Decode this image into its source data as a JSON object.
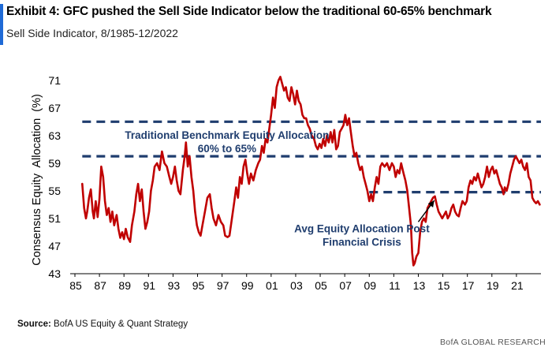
{
  "header": {
    "title": "Exhibit 4: GFC pushed the Sell Side Indicator below the traditional 60-65% benchmark",
    "subtitle": "Sell Side Indicator, 8/1985-12/2022",
    "accent_color": "#1f6ad6"
  },
  "footer": {
    "source_label": "Source:",
    "source_text": "BofA US Equity & Quant Strategy",
    "brand": "BofA GLOBAL RESEARCH"
  },
  "chart_data": {
    "type": "line",
    "title": "",
    "xlabel": "",
    "ylabel": "Consensus Equity  Allocation  (%)",
    "ylim": [
      43,
      72
    ],
    "xlim": [
      1985,
      2023
    ],
    "grid": false,
    "yticks": [
      43,
      47,
      51,
      55,
      59,
      63,
      67,
      71
    ],
    "xticks": [
      {
        "value": 1985,
        "label": "85"
      },
      {
        "value": 1987,
        "label": "87"
      },
      {
        "value": 1989,
        "label": "89"
      },
      {
        "value": 1991,
        "label": "91"
      },
      {
        "value": 1993,
        "label": "93"
      },
      {
        "value": 1995,
        "label": "95"
      },
      {
        "value": 1997,
        "label": "97"
      },
      {
        "value": 1999,
        "label": "99"
      },
      {
        "value": 2001,
        "label": "01"
      },
      {
        "value": 2003,
        "label": "03"
      },
      {
        "value": 2005,
        "label": "05"
      },
      {
        "value": 2007,
        "label": "07"
      },
      {
        "value": 2009,
        "label": "09"
      },
      {
        "value": 2011,
        "label": "11"
      },
      {
        "value": 2013,
        "label": "13"
      },
      {
        "value": 2015,
        "label": "15"
      },
      {
        "value": 2017,
        "label": "17"
      },
      {
        "value": 2019,
        "label": "19"
      },
      {
        "value": 2021,
        "label": "21"
      }
    ],
    "series": [
      {
        "line_color": "#c00000",
        "points": [
          [
            1985.6,
            56.0
          ],
          [
            1985.75,
            52.5
          ],
          [
            1985.9,
            51.0
          ],
          [
            1986.0,
            52.0
          ],
          [
            1986.15,
            54.0
          ],
          [
            1986.3,
            55.2
          ],
          [
            1986.45,
            52.0
          ],
          [
            1986.55,
            51.0
          ],
          [
            1986.7,
            53.5
          ],
          [
            1986.85,
            51.2
          ],
          [
            1987.0,
            53.8
          ],
          [
            1987.15,
            58.5
          ],
          [
            1987.3,
            57.0
          ],
          [
            1987.45,
            53.5
          ],
          [
            1987.6,
            51.5
          ],
          [
            1987.75,
            52.5
          ],
          [
            1987.9,
            50.5
          ],
          [
            1988.05,
            52.0
          ],
          [
            1988.2,
            50.0
          ],
          [
            1988.4,
            51.5
          ],
          [
            1988.55,
            49.5
          ],
          [
            1988.7,
            48.2
          ],
          [
            1988.85,
            49.0
          ],
          [
            1989.0,
            48.0
          ],
          [
            1989.15,
            49.5
          ],
          [
            1989.3,
            48.3
          ],
          [
            1989.5,
            47.6
          ],
          [
            1989.65,
            50.0
          ],
          [
            1989.85,
            52.0
          ],
          [
            1990.0,
            54.5
          ],
          [
            1990.15,
            56.0
          ],
          [
            1990.3,
            53.5
          ],
          [
            1990.45,
            55.2
          ],
          [
            1990.6,
            52.0
          ],
          [
            1990.75,
            49.5
          ],
          [
            1990.9,
            50.5
          ],
          [
            1991.05,
            52.0
          ],
          [
            1991.2,
            55.0
          ],
          [
            1991.35,
            56.5
          ],
          [
            1991.5,
            58.5
          ],
          [
            1991.7,
            59.0
          ],
          [
            1991.9,
            58.0
          ],
          [
            1992.1,
            60.7
          ],
          [
            1992.3,
            59.0
          ],
          [
            1992.5,
            58.5
          ],
          [
            1992.7,
            57.0
          ],
          [
            1992.85,
            56.0
          ],
          [
            1993.0,
            57.0
          ],
          [
            1993.15,
            58.5
          ],
          [
            1993.3,
            56.5
          ],
          [
            1993.45,
            55.0
          ],
          [
            1993.6,
            54.5
          ],
          [
            1993.8,
            58.0
          ],
          [
            1993.95,
            60.0
          ],
          [
            1994.05,
            62.0
          ],
          [
            1994.2,
            58.5
          ],
          [
            1994.35,
            60.0
          ],
          [
            1994.5,
            57.0
          ],
          [
            1994.65,
            55.0
          ],
          [
            1994.8,
            52.0
          ],
          [
            1994.95,
            50.0
          ],
          [
            1995.1,
            49.0
          ],
          [
            1995.25,
            48.5
          ],
          [
            1995.4,
            50.0
          ],
          [
            1995.6,
            52.0
          ],
          [
            1995.8,
            54.0
          ],
          [
            1996.0,
            54.5
          ],
          [
            1996.15,
            52.5
          ],
          [
            1996.3,
            51.0
          ],
          [
            1996.5,
            50.0
          ],
          [
            1996.7,
            51.5
          ],
          [
            1996.9,
            50.5
          ],
          [
            1997.1,
            50.0
          ],
          [
            1997.25,
            48.5
          ],
          [
            1997.45,
            48.3
          ],
          [
            1997.6,
            48.5
          ],
          [
            1997.8,
            51.0
          ],
          [
            1998.0,
            53.5
          ],
          [
            1998.15,
            55.5
          ],
          [
            1998.3,
            54.0
          ],
          [
            1998.45,
            57.0
          ],
          [
            1998.6,
            56.0
          ],
          [
            1998.75,
            58.5
          ],
          [
            1998.9,
            59.5
          ],
          [
            1999.05,
            57.5
          ],
          [
            1999.2,
            56.0
          ],
          [
            1999.35,
            57.5
          ],
          [
            1999.55,
            56.5
          ],
          [
            1999.75,
            58.0
          ],
          [
            1999.95,
            59.0
          ],
          [
            2000.1,
            59.5
          ],
          [
            2000.25,
            61.5
          ],
          [
            2000.4,
            60.5
          ],
          [
            2000.55,
            62.5
          ],
          [
            2000.7,
            62.0
          ],
          [
            2000.85,
            64.0
          ],
          [
            2001.0,
            66.0
          ],
          [
            2001.15,
            68.5
          ],
          [
            2001.3,
            67.0
          ],
          [
            2001.45,
            70.0
          ],
          [
            2001.6,
            71.0
          ],
          [
            2001.75,
            71.5
          ],
          [
            2001.9,
            70.5
          ],
          [
            2002.05,
            69.5
          ],
          [
            2002.2,
            70.0
          ],
          [
            2002.35,
            68.5
          ],
          [
            2002.5,
            68.0
          ],
          [
            2002.65,
            70.0
          ],
          [
            2002.8,
            69.0
          ],
          [
            2002.95,
            67.5
          ],
          [
            2003.1,
            69.5
          ],
          [
            2003.25,
            68.0
          ],
          [
            2003.4,
            67.5
          ],
          [
            2003.55,
            66.0
          ],
          [
            2003.7,
            65.5
          ],
          [
            2003.85,
            65.5
          ],
          [
            2004.0,
            64.5
          ],
          [
            2004.15,
            64.0
          ],
          [
            2004.3,
            63.0
          ],
          [
            2004.5,
            62.5
          ],
          [
            2004.65,
            61.5
          ],
          [
            2004.8,
            61.0
          ],
          [
            2004.95,
            61.8
          ],
          [
            2005.1,
            61.2
          ],
          [
            2005.25,
            62.5
          ],
          [
            2005.4,
            61.5
          ],
          [
            2005.55,
            63.0
          ],
          [
            2005.7,
            62.0
          ],
          [
            2005.85,
            63.5
          ],
          [
            2006.0,
            62.0
          ],
          [
            2006.15,
            63.8
          ],
          [
            2006.3,
            61.0
          ],
          [
            2006.45,
            61.5
          ],
          [
            2006.6,
            63.5
          ],
          [
            2006.75,
            64.0
          ],
          [
            2006.9,
            64.5
          ],
          [
            2007.05,
            66.0
          ],
          [
            2007.2,
            64.5
          ],
          [
            2007.35,
            65.5
          ],
          [
            2007.5,
            63.5
          ],
          [
            2007.65,
            61.5
          ],
          [
            2007.8,
            60.0
          ],
          [
            2007.95,
            60.5
          ],
          [
            2008.1,
            59.0
          ],
          [
            2008.25,
            58.0
          ],
          [
            2008.4,
            58.5
          ],
          [
            2008.55,
            57.0
          ],
          [
            2008.7,
            56.0
          ],
          [
            2008.85,
            55.0
          ],
          [
            2009.0,
            53.5
          ],
          [
            2009.15,
            54.5
          ],
          [
            2009.3,
            53.5
          ],
          [
            2009.45,
            55.5
          ],
          [
            2009.6,
            57.0
          ],
          [
            2009.75,
            56.0
          ],
          [
            2009.9,
            58.5
          ],
          [
            2010.05,
            59.0
          ],
          [
            2010.25,
            58.5
          ],
          [
            2010.45,
            59.0
          ],
          [
            2010.65,
            58.0
          ],
          [
            2010.85,
            59.0
          ],
          [
            2011.0,
            58.5
          ],
          [
            2011.15,
            57.0
          ],
          [
            2011.3,
            58.0
          ],
          [
            2011.45,
            57.5
          ],
          [
            2011.6,
            59.0
          ],
          [
            2011.8,
            57.5
          ],
          [
            2011.95,
            56.5
          ],
          [
            2012.1,
            55.0
          ],
          [
            2012.25,
            52.5
          ],
          [
            2012.4,
            50.0
          ],
          [
            2012.5,
            46.0
          ],
          [
            2012.6,
            44.2
          ],
          [
            2012.7,
            44.5
          ],
          [
            2012.85,
            45.5
          ],
          [
            2013.0,
            46.0
          ],
          [
            2013.15,
            49.0
          ],
          [
            2013.3,
            50.5
          ],
          [
            2013.45,
            51.0
          ],
          [
            2013.6,
            50.5
          ],
          [
            2013.75,
            52.5
          ],
          [
            2013.9,
            53.0
          ],
          [
            2014.05,
            53.5
          ],
          [
            2014.2,
            54.0
          ],
          [
            2014.35,
            54.2
          ],
          [
            2014.5,
            53.0
          ],
          [
            2014.65,
            52.0
          ],
          [
            2014.8,
            51.5
          ],
          [
            2014.95,
            51.0
          ],
          [
            2015.1,
            51.5
          ],
          [
            2015.25,
            52.0
          ],
          [
            2015.4,
            51.0
          ],
          [
            2015.55,
            51.5
          ],
          [
            2015.7,
            52.5
          ],
          [
            2015.85,
            53.0
          ],
          [
            2016.0,
            52.0
          ],
          [
            2016.15,
            51.5
          ],
          [
            2016.3,
            51.3
          ],
          [
            2016.45,
            52.5
          ],
          [
            2016.6,
            53.5
          ],
          [
            2016.8,
            53.0
          ],
          [
            2016.95,
            53.5
          ],
          [
            2017.1,
            55.5
          ],
          [
            2017.25,
            56.5
          ],
          [
            2017.4,
            56.0
          ],
          [
            2017.55,
            57.0
          ],
          [
            2017.7,
            56.5
          ],
          [
            2017.85,
            57.5
          ],
          [
            2018.0,
            56.5
          ],
          [
            2018.15,
            55.5
          ],
          [
            2018.3,
            56.0
          ],
          [
            2018.45,
            57.0
          ],
          [
            2018.6,
            58.5
          ],
          [
            2018.75,
            57.0
          ],
          [
            2018.9,
            58.0
          ],
          [
            2019.05,
            58.5
          ],
          [
            2019.2,
            57.5
          ],
          [
            2019.35,
            58.0
          ],
          [
            2019.5,
            57.0
          ],
          [
            2019.65,
            56.0
          ],
          [
            2019.8,
            55.5
          ],
          [
            2019.95,
            54.5
          ],
          [
            2020.05,
            55.5
          ],
          [
            2020.2,
            55.0
          ],
          [
            2020.35,
            56.0
          ],
          [
            2020.5,
            57.5
          ],
          [
            2020.65,
            58.5
          ],
          [
            2020.8,
            59.5
          ],
          [
            2020.95,
            60.0
          ],
          [
            2021.1,
            59.5
          ],
          [
            2021.25,
            59.0
          ],
          [
            2021.4,
            59.5
          ],
          [
            2021.55,
            58.5
          ],
          [
            2021.7,
            58.0
          ],
          [
            2021.85,
            59.0
          ],
          [
            2022.0,
            57.0
          ],
          [
            2022.15,
            56.5
          ],
          [
            2022.3,
            54.0
          ],
          [
            2022.45,
            53.5
          ],
          [
            2022.6,
            53.2
          ],
          [
            2022.75,
            53.5
          ],
          [
            2022.9,
            53.0
          ]
        ]
      }
    ],
    "reference_lines": [
      {
        "y": 65,
        "x_start": 1985.6,
        "x_end": 2023,
        "color": "#1f3d6e",
        "style": "dashed"
      },
      {
        "y": 60,
        "x_start": 1985.6,
        "x_end": 2023,
        "color": "#1f3d6e",
        "style": "dashed"
      },
      {
        "y": 54.8,
        "x_start": 2009.0,
        "x_end": 2023,
        "color": "#1f3d6e",
        "style": "dashed"
      }
    ],
    "annotations": [
      {
        "id": "benchmark",
        "lines": [
          "Traditional Benchmark Equity Allocation",
          "60% to 65%"
        ],
        "x": 1997.4,
        "y": 62.5,
        "color": "#1f3d6e"
      },
      {
        "id": "post-crisis",
        "lines": [
          "Avg Equity Allocation Post",
          "Financial Crisis"
        ],
        "x": 2008.4,
        "y": 49.0,
        "color": "#1f3d6e"
      }
    ],
    "arrow": {
      "from": [
        2013.0,
        50.5
      ],
      "to": [
        2014.3,
        53.6
      ],
      "color": "#000000"
    }
  }
}
